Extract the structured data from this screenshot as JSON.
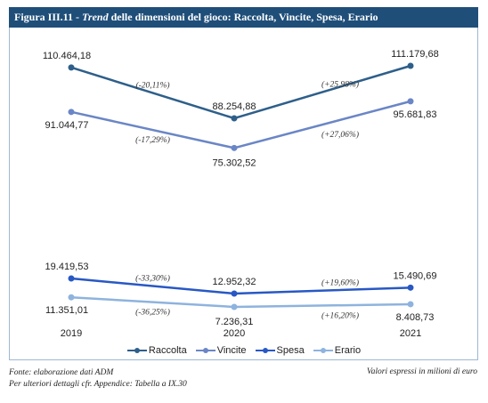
{
  "figure": {
    "title_prefix": "Figura III.11 - ",
    "title_italic": "Trend",
    "title_rest": " delle dimensioni del gioco: Raccolta, Vincite, Spesa, Erario"
  },
  "chart_data": {
    "type": "line",
    "categories": [
      "2019",
      "2020",
      "2021"
    ],
    "series": [
      {
        "name": "Raccolta",
        "values": [
          110464.18,
          88254.88,
          111179.68
        ],
        "labels": [
          "110.464,18",
          "88.254,88",
          "111.179,68"
        ],
        "changes": [
          "(-20,11%)",
          "(+25,98%)"
        ],
        "color": "#2e5f8a"
      },
      {
        "name": "Vincite",
        "values": [
          91044.77,
          75302.52,
          95681.83
        ],
        "labels": [
          "91.044,77",
          "75.302,52",
          "95.681,83"
        ],
        "changes": [
          "(-17,29%)",
          "(+27,06%)"
        ],
        "color": "#6a86c6"
      },
      {
        "name": "Spesa",
        "values": [
          19419.53,
          12952.32,
          15490.69
        ],
        "labels": [
          "19.419,53",
          "12.952,32",
          "15.490,69"
        ],
        "changes": [
          "(-33,30%)",
          "(+19,60%)"
        ],
        "color": "#2858c4"
      },
      {
        "name": "Erario",
        "values": [
          11351.01,
          7236.31,
          8408.73
        ],
        "labels": [
          "11.351,01",
          "7.236,31",
          "8.408,73"
        ],
        "changes": [
          "(-36,25%)",
          "(+16,20%)"
        ],
        "color": "#8eb3de"
      }
    ],
    "axis_break": {
      "between": [
        20000,
        75000
      ]
    },
    "legend_position": "bottom",
    "grid": false
  },
  "footer": {
    "source": "Fonte: elaborazione dati ADM",
    "details": "Per ulteriori dettagli cfr. Appendice: Tabella a IX.30",
    "units_note": "Valori espressi in milioni di euro"
  }
}
